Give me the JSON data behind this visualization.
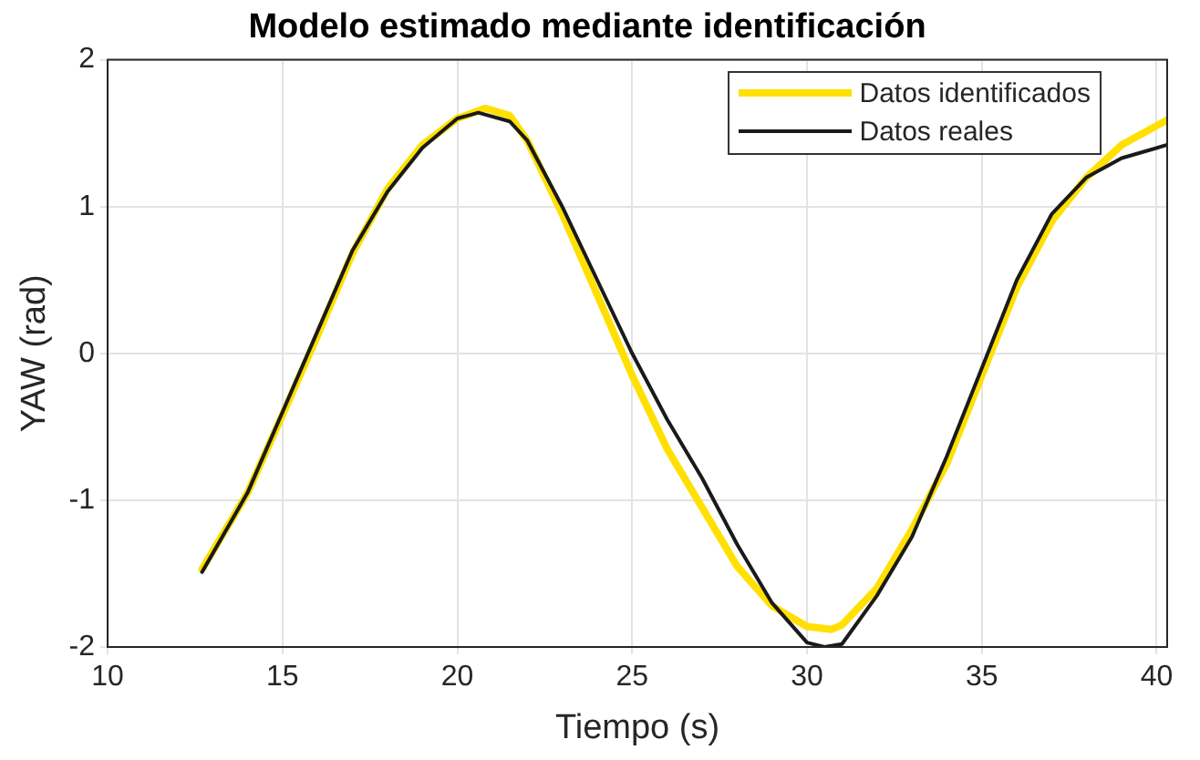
{
  "chart_data": {
    "type": "line",
    "title": "Modelo estimado mediante identificación",
    "xlabel": "Tiempo (s)",
    "ylabel": "YAW (rad)",
    "xlim": [
      10,
      40.3
    ],
    "xticks": [
      10,
      15,
      20,
      25,
      30,
      35,
      40
    ],
    "ylim": [
      -2,
      2
    ],
    "yticks": [
      -2,
      -1,
      0,
      1,
      2
    ],
    "grid": true,
    "legend": "top right",
    "marker": "none",
    "line_style": "solid",
    "series": [
      {
        "name": "Datos identificados",
        "color": "#ffe000",
        "x": [
          12.7,
          14,
          15,
          16,
          17,
          18,
          19,
          20,
          20.8,
          21.5,
          22,
          23,
          24,
          25,
          26,
          27,
          28,
          29,
          30,
          30.7,
          31,
          32,
          33,
          34,
          35,
          36,
          37,
          38,
          39,
          40.3
        ],
        "values": [
          -1.47,
          -0.95,
          -0.42,
          0.12,
          0.68,
          1.12,
          1.42,
          1.6,
          1.67,
          1.62,
          1.45,
          0.95,
          0.4,
          -0.15,
          -0.65,
          -1.05,
          -1.45,
          -1.72,
          -1.86,
          -1.88,
          -1.85,
          -1.6,
          -1.2,
          -0.75,
          -0.15,
          0.45,
          0.9,
          1.2,
          1.42,
          1.59
        ]
      },
      {
        "name": "Datos reales",
        "color": "#1a1a1a",
        "x": [
          12.7,
          14,
          15,
          16,
          17,
          18,
          19,
          20,
          20.6,
          21.5,
          22,
          23,
          24,
          25,
          26,
          27,
          28,
          29,
          30,
          30.5,
          31,
          32,
          33,
          34,
          35,
          36,
          37,
          38,
          39,
          40.3
        ],
        "values": [
          -1.49,
          -0.95,
          -0.4,
          0.15,
          0.7,
          1.1,
          1.4,
          1.6,
          1.64,
          1.58,
          1.45,
          1.0,
          0.5,
          0.0,
          -0.45,
          -0.85,
          -1.3,
          -1.7,
          -1.97,
          -2.0,
          -1.98,
          -1.65,
          -1.25,
          -0.7,
          -0.1,
          0.5,
          0.95,
          1.2,
          1.33,
          1.42
        ]
      }
    ]
  }
}
